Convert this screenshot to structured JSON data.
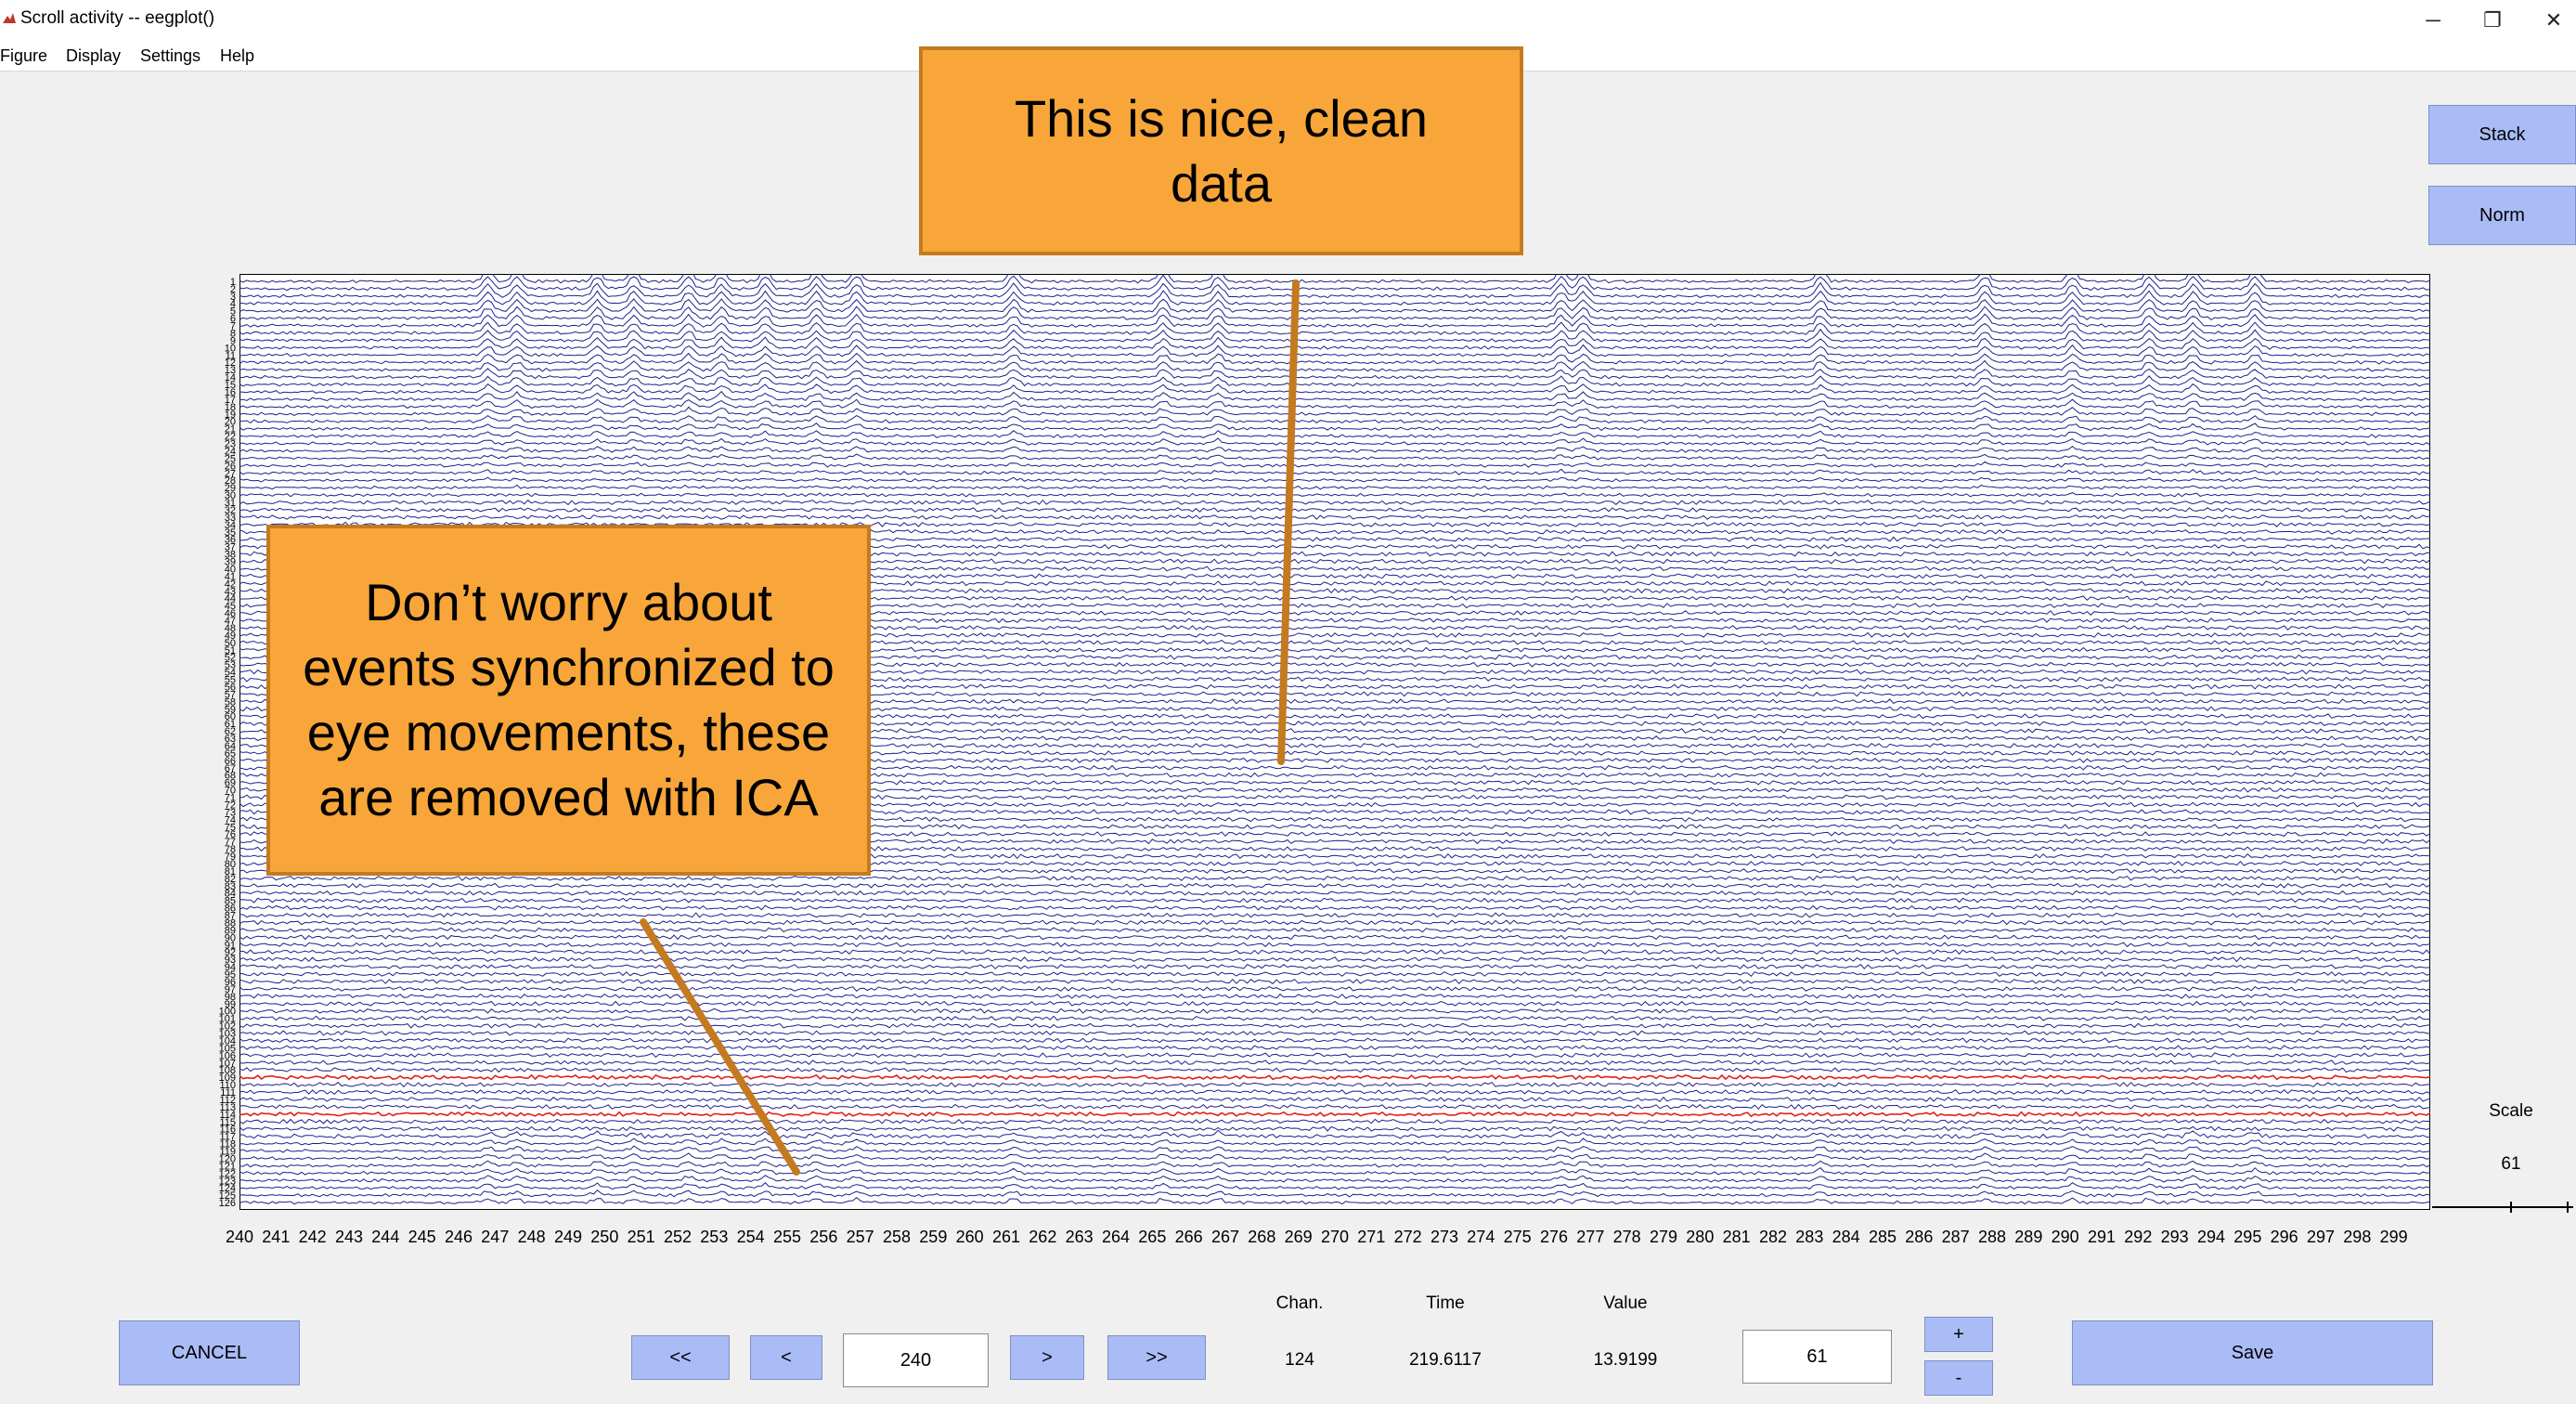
{
  "window": {
    "title": "Scroll activity -- eegplot()",
    "minimize": "─",
    "restore": "❐",
    "close": "✕"
  },
  "menu": [
    "Figure",
    "Display",
    "Settings",
    "Help"
  ],
  "side_buttons": {
    "stack": "Stack",
    "norm": "Norm"
  },
  "scale": {
    "label": "Scale",
    "value": "61"
  },
  "callouts": {
    "clean": "This is nice, clean data",
    "eye": "Don’t worry about events synchronized to eye movements, these are removed with ICA"
  },
  "plot": {
    "channel_count": 126,
    "time_start": 240,
    "time_end": 299,
    "time_ticks": [
      240,
      241,
      242,
      243,
      244,
      245,
      246,
      247,
      248,
      249,
      250,
      251,
      252,
      253,
      254,
      255,
      256,
      257,
      258,
      259,
      260,
      261,
      262,
      263,
      264,
      265,
      266,
      267,
      268,
      269,
      270,
      271,
      272,
      273,
      274,
      275,
      276,
      277,
      278,
      279,
      280,
      281,
      282,
      283,
      284,
      285,
      286,
      287,
      288,
      289,
      290,
      291,
      292,
      293,
      294,
      295,
      296,
      297,
      298,
      299
    ],
    "trace_color": "#1f1f8f",
    "bad_channel_color": "#e0201c",
    "bad_channels": [
      109,
      114
    ]
  },
  "controls": {
    "cancel": "CANCEL",
    "first": "<<",
    "prev": "<",
    "position": "240",
    "next": ">",
    "last": ">>",
    "chan_label": "Chan.",
    "time_label": "Time",
    "value_label": "Value",
    "chan_value": "124",
    "time_value": "219.6117",
    "value_value": "13.9199",
    "scale_input": "61",
    "plus": "+",
    "minus": "-",
    "save": "Save"
  },
  "colors": {
    "button": "#aabcf5",
    "callout": "#f8a63a",
    "arrow": "#c47a1f"
  }
}
